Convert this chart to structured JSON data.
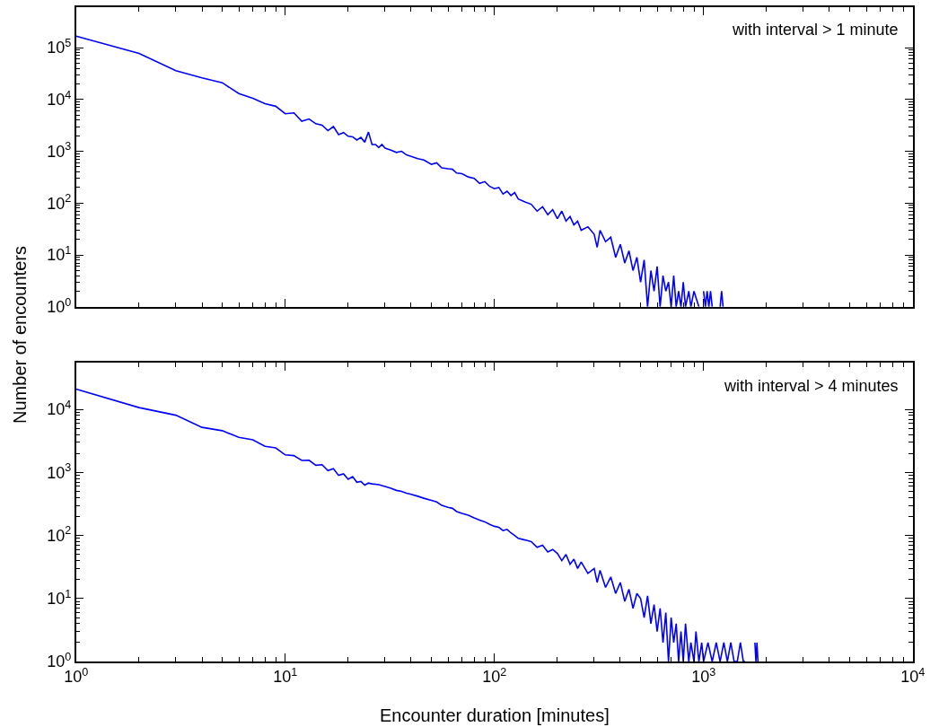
{
  "chart_data": [
    {
      "type": "line",
      "ylabel": "Number of encounters",
      "annotations": [
        "with interval > 1 minute"
      ],
      "log": "xy",
      "marker": "none",
      "line_style": "solid",
      "tick_labels": "y",
      "xlim": [
        1,
        10000
      ],
      "xticks": [
        {
          "value": 1,
          "label": "10$^{0}$"
        },
        {
          "value": 10,
          "label": "10$^{1}$"
        },
        {
          "value": 100,
          "label": "10$^{2}$"
        },
        {
          "value": 1000,
          "label": "10$^{3}$"
        },
        {
          "value": 10000,
          "label": "10$^{4}$"
        }
      ],
      "ylim": [
        1,
        600000
      ],
      "yticks": [
        {
          "value": 1,
          "label": "10$^{0}$"
        },
        {
          "value": 10,
          "label": "10$^{1}$"
        },
        {
          "value": 100,
          "label": "10$^{2}$"
        },
        {
          "value": 1000,
          "label": "10$^{3}$"
        },
        {
          "value": 10000,
          "label": "10$^{4}$"
        },
        {
          "value": 100000,
          "label": "10$^{5}$"
        }
      ],
      "series": [
        {
          "color": "#0000ff",
          "x": [
            1,
            2,
            3,
            4,
            5,
            6,
            7,
            8,
            9,
            10,
            11,
            12,
            13,
            14,
            15,
            16,
            17,
            18,
            19,
            20,
            21,
            22,
            23,
            24,
            25,
            26,
            27,
            28,
            29,
            30,
            32,
            34,
            36,
            38,
            40,
            43,
            46,
            50,
            53,
            56,
            60,
            63,
            66,
            70,
            75,
            80,
            85,
            90,
            95,
            100,
            105,
            110,
            115,
            120,
            125,
            130,
            140,
            150,
            160,
            170,
            180,
            190,
            200,
            210,
            220,
            230,
            240,
            250,
            260,
            280,
            300,
            310,
            320,
            340,
            360,
            380,
            400,
            420,
            440,
            460,
            480,
            500,
            520,
            540,
            560,
            580,
            600,
            620,
            640,
            660,
            680,
            700,
            720,
            740,
            760,
            780,
            800,
            820,
            850,
            870,
            900,
            950,
            980,
            1000,
            1020,
            1040,
            1060,
            1080,
            1100,
            1150,
            1200,
            1220,
            1240
          ],
          "values": [
            166000,
            77000,
            36000,
            26000,
            21000,
            13000,
            10500,
            8300,
            7400,
            5300,
            5500,
            3800,
            4200,
            3400,
            3200,
            2500,
            3000,
            2100,
            2300,
            1950,
            1900,
            1650,
            1850,
            1500,
            2350,
            1350,
            1350,
            1180,
            1350,
            1150,
            1050,
            950,
            1000,
            850,
            800,
            720,
            680,
            560,
            600,
            480,
            460,
            450,
            380,
            370,
            320,
            300,
            240,
            260,
            210,
            190,
            200,
            150,
            170,
            140,
            160,
            120,
            105,
            95,
            70,
            85,
            60,
            75,
            50,
            70,
            45,
            55,
            38,
            45,
            30,
            35,
            25,
            14,
            30,
            18,
            22,
            9,
            16,
            7,
            12,
            5,
            9,
            3,
            8,
            1,
            5,
            2,
            6,
            1,
            4,
            2,
            3,
            1,
            4,
            1,
            2,
            1,
            3,
            1,
            2,
            1,
            2,
            1,
            null,
            2,
            1,
            2,
            1,
            2,
            1,
            null,
            1,
            2,
            1
          ]
        }
      ]
    },
    {
      "type": "line",
      "xlabel": "Encounter duration [minutes]",
      "annotations": [
        "with interval > 4 minutes"
      ],
      "log": "xy",
      "marker": "none",
      "line_style": "solid",
      "xlim": [
        1,
        10000
      ],
      "xticks": [
        {
          "value": 1,
          "label": "10$^{0}$"
        },
        {
          "value": 10,
          "label": "10$^{1}$"
        },
        {
          "value": 100,
          "label": "10$^{2}$"
        },
        {
          "value": 1000,
          "label": "10$^{3}$"
        },
        {
          "value": 10000,
          "label": "10$^{4}$"
        }
      ],
      "ylim": [
        1,
        55000
      ],
      "yticks": [
        {
          "value": 1,
          "label": "10$^{0}$"
        },
        {
          "value": 10,
          "label": "10$^{1}$"
        },
        {
          "value": 100,
          "label": "10$^{2}$"
        },
        {
          "value": 1000,
          "label": "10$^{3}$"
        },
        {
          "value": 10000,
          "label": "10$^{4}$"
        }
      ],
      "series": [
        {
          "color": "#0000ff",
          "x": [
            1,
            2,
            3,
            4,
            5,
            6,
            7,
            8,
            9,
            10,
            11,
            12,
            13,
            14,
            15,
            16,
            17,
            18,
            19,
            20,
            21,
            22,
            23,
            24,
            25,
            26,
            28,
            30,
            32,
            34,
            36,
            38,
            40,
            43,
            46,
            50,
            53,
            56,
            60,
            63,
            66,
            70,
            75,
            80,
            85,
            90,
            95,
            100,
            105,
            110,
            115,
            120,
            125,
            130,
            140,
            150,
            160,
            170,
            180,
            190,
            200,
            210,
            220,
            230,
            240,
            250,
            260,
            280,
            300,
            310,
            320,
            340,
            360,
            380,
            400,
            420,
            440,
            460,
            480,
            500,
            520,
            540,
            560,
            580,
            600,
            620,
            640,
            660,
            680,
            700,
            720,
            740,
            760,
            780,
            800,
            820,
            850,
            870,
            900,
            920,
            950,
            980,
            1000,
            1050,
            1100,
            1150,
            1200,
            1250,
            1300,
            1350,
            1400,
            1450,
            1500,
            1550,
            1580,
            1650,
            1760,
            1780,
            1800,
            1820
          ],
          "values": [
            21000,
            10700,
            8100,
            5200,
            4600,
            3600,
            3300,
            2600,
            2450,
            1900,
            1850,
            1550,
            1560,
            1300,
            1330,
            1070,
            1150,
            900,
            950,
            780,
            860,
            700,
            720,
            630,
            680,
            660,
            640,
            600,
            560,
            520,
            500,
            470,
            450,
            420,
            390,
            360,
            340,
            300,
            280,
            270,
            240,
            225,
            210,
            190,
            175,
            165,
            150,
            140,
            135,
            120,
            125,
            110,
            100,
            90,
            85,
            80,
            65,
            70,
            55,
            60,
            52,
            40,
            50,
            35,
            42,
            30,
            38,
            25,
            30,
            18,
            28,
            15,
            22,
            12,
            18,
            9,
            14,
            7,
            12,
            10,
            5,
            11,
            4,
            8,
            3,
            7,
            2,
            6,
            1,
            5,
            2,
            4,
            1,
            3,
            1,
            4,
            1,
            2,
            1,
            3,
            1,
            2,
            1,
            2,
            1,
            2,
            1,
            2,
            1,
            2,
            1,
            1,
            2,
            1,
            1,
            null,
            2,
            1,
            2,
            1
          ]
        }
      ]
    }
  ]
}
